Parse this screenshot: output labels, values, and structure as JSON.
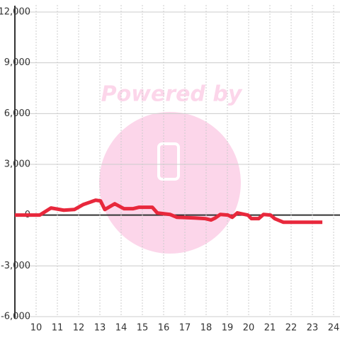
{
  "chart_data": {
    "type": "line",
    "watermark": "Powered by",
    "x": [
      9,
      10.17,
      10.7,
      11.3,
      11.8,
      12.23,
      12.8,
      13.03,
      13.23,
      13.7,
      14.13,
      14.57,
      14.83,
      15.47,
      15.7,
      16.3,
      16.63,
      17.47,
      17.97,
      18.23,
      18.43,
      18.67,
      19.03,
      19.23,
      19.47,
      19.97,
      20.13,
      20.47,
      20.7,
      21.03,
      21.23,
      21.63,
      23.47
    ],
    "series": [
      {
        "color": "#e8283c",
        "values": [
          0,
          0,
          420,
          290,
          330,
          630,
          880,
          840,
          330,
          670,
          380,
          380,
          460,
          460,
          130,
          40,
          -130,
          -170,
          -210,
          -290,
          -170,
          40,
          0,
          -130,
          130,
          0,
          -210,
          -210,
          40,
          0,
          -210,
          -420,
          -420
        ]
      }
    ],
    "xlim": [
      9,
      24.3
    ],
    "xticks": [
      10,
      11,
      12,
      13,
      14,
      15,
      16,
      17,
      18,
      19,
      20,
      21,
      22,
      23,
      24
    ],
    "ylim": [
      -6000,
      12000
    ],
    "yticks": [
      {
        "value": -6000,
        "label": "-6,000"
      },
      {
        "value": -3000,
        "label": "-3,000"
      },
      0,
      {
        "value": 3000,
        "label": "3,000"
      },
      {
        "value": 6000,
        "label": "6,000"
      },
      {
        "value": 9000,
        "label": "9,000"
      },
      {
        "value": 12000,
        "label": "12,000"
      }
    ],
    "grid": true
  }
}
